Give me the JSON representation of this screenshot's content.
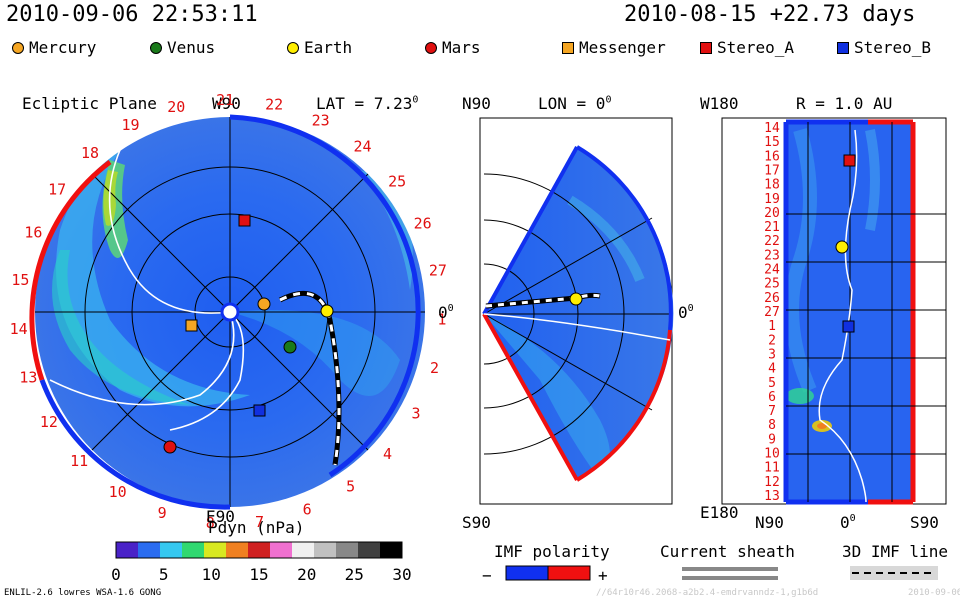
{
  "header": {
    "datetime": "2010-09-06 22:53:11",
    "reference": "2010-08-15 +22.73 days"
  },
  "legend": [
    {
      "label": "Mercury",
      "shape": "circle",
      "color": "#f5a623",
      "icon": "mercury-icon"
    },
    {
      "label": "Venus",
      "shape": "circle",
      "color": "#1a7a1a",
      "icon": "venus-icon"
    },
    {
      "label": "Earth",
      "shape": "circle",
      "color": "#ffee00",
      "icon": "earth-icon"
    },
    {
      "label": "Mars",
      "shape": "circle",
      "color": "#e01010",
      "icon": "mars-icon"
    },
    {
      "label": "Messenger",
      "shape": "square",
      "color": "#f5a623",
      "icon": "messenger-icon"
    },
    {
      "label": "Stereo_A",
      "shape": "square",
      "color": "#e01010",
      "icon": "stereo-a-icon"
    },
    {
      "label": "Stereo_B",
      "shape": "square",
      "color": "#1030e0",
      "icon": "stereo-b-icon"
    }
  ],
  "panels": {
    "ecliptic": {
      "title": "Ecliptic Plane",
      "top_label": "W90",
      "bottom_label": "E90",
      "lat_label": "LAT = 7.23",
      "lat_sup": "0",
      "right_label": "0",
      "right_sup": "0",
      "rim_labels": [
        "19",
        "20",
        "21",
        "22",
        "23",
        "24",
        "25",
        "26",
        "27",
        "1",
        "2",
        "3",
        "4",
        "5",
        "6",
        "7",
        "8",
        "9",
        "10",
        "11",
        "12",
        "13",
        "14",
        "15",
        "16",
        "17",
        "18"
      ]
    },
    "meridional": {
      "top_label": "N90",
      "lon_label": "LON = 0",
      "lon_sup": "0",
      "right_label": "0",
      "right_sup": "0",
      "bottom_label": "S90"
    },
    "radial": {
      "top_left": "W180",
      "r_label": "R = 1.0 AU",
      "bottom_left": "E180",
      "x_labels": [
        "N90",
        "0",
        "S90"
      ],
      "x_sup": "0",
      "y_labels": [
        "14",
        "15",
        "16",
        "17",
        "18",
        "19",
        "20",
        "21",
        "22",
        "23",
        "24",
        "25",
        "26",
        "27",
        "1",
        "2",
        "3",
        "4",
        "5",
        "6",
        "7",
        "8",
        "9",
        "10",
        "11",
        "12",
        "13"
      ]
    }
  },
  "colorbar": {
    "title": "Pdyn (nPa)",
    "ticks": [
      "0",
      "5",
      "10",
      "15",
      "20",
      "25",
      "30"
    ],
    "colors": [
      "#4a22c8",
      "#2a6cf0",
      "#35c8f0",
      "#30d870",
      "#d8e820",
      "#f08020",
      "#d02020",
      "#f070d0",
      "#f0f0f0",
      "#c0c0c0",
      "#888888",
      "#404040",
      "#000000"
    ]
  },
  "imf": {
    "title": "IMF polarity",
    "minus": "−",
    "plus": "+",
    "neg_color": "#1030f0",
    "pos_color": "#f01010"
  },
  "current_sheath": {
    "title": "Current sheath"
  },
  "imf_line": {
    "title": "3D IMF line"
  },
  "footer": {
    "model": "ENLIL-2.6 lowres WSA-1.6 GONG",
    "runid": "//64r10r46.2068-a2b2.4-emdrvanndz-1,g1b6d",
    "date": "2010-09-06"
  },
  "chart_data": {
    "type": "heatmap",
    "quantity": "Pdyn (nPa)",
    "color_range": [
      0,
      30
    ],
    "bodies": [
      {
        "name": "Mercury"
      },
      {
        "name": "Venus"
      },
      {
        "name": "Earth"
      },
      {
        "name": "Mars"
      },
      {
        "name": "Messenger"
      },
      {
        "name": "Stereo_A"
      },
      {
        "name": "Stereo_B"
      }
    ]
  }
}
